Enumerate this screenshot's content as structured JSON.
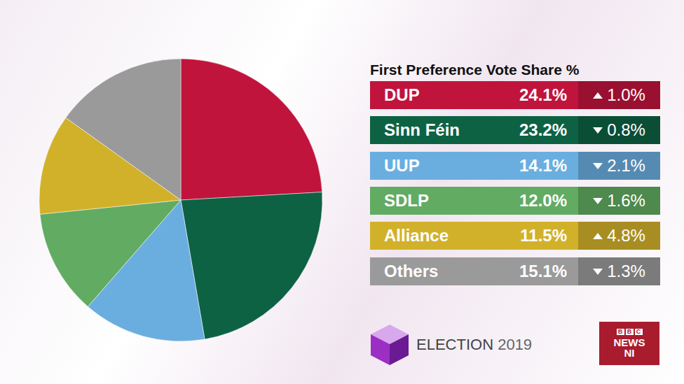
{
  "chart_data": {
    "type": "pie",
    "title": "First Preference Vote Share %",
    "categories": [
      "DUP",
      "Sinn Féin",
      "UUP",
      "SDLP",
      "Alliance",
      "Others"
    ],
    "values": [
      24.1,
      23.2,
      14.1,
      12.0,
      11.5,
      15.1
    ],
    "value_labels": [
      "24.1%",
      "23.2%",
      "14.1%",
      "12.0%",
      "11.5%",
      "15.1%"
    ],
    "changes": [
      1.0,
      -0.8,
      -2.1,
      -1.6,
      4.8,
      -1.3
    ],
    "change_labels": [
      "1.0%",
      "0.8%",
      "2.1%",
      "1.6%",
      "4.8%",
      "1.3%"
    ],
    "colors": [
      "#c0143c",
      "#0e6244",
      "#6aaee0",
      "#62ab62",
      "#d2b12a",
      "#9a9a9a"
    ],
    "data_labels": true,
    "annotations": {
      "election": "ELECTION",
      "year": "2019",
      "bbc": "BBC",
      "news": "NEWS",
      "region": "NI"
    }
  }
}
